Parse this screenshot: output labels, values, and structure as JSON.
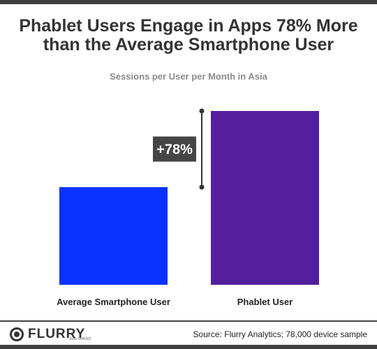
{
  "header": {
    "title_line1": "Phablet Users Engage in Apps 78% More",
    "title_line2": "than the Average Smartphone User",
    "subtitle": "Sessions per User per Month in Asia"
  },
  "chart_data": {
    "type": "bar",
    "title": "Phablet Users Engage in Apps 78% More than the Average Smartphone User",
    "subtitle": "Sessions per User per Month in Asia",
    "categories": [
      "Average Smartphone User",
      "Phablet User"
    ],
    "values": [
      1.0,
      1.78
    ],
    "value_note": "relative (average smartphone user = 1.0); no axis printed",
    "colors": [
      "#0a32ff",
      "#551e9e"
    ],
    "annotation": "+78%",
    "grid": false,
    "legend": "none"
  },
  "footer": {
    "logo_text": "FLURRY",
    "logo_sub": "from YAHOO!",
    "source": "Source: Flurry Analytics; 78,000 device sample"
  }
}
